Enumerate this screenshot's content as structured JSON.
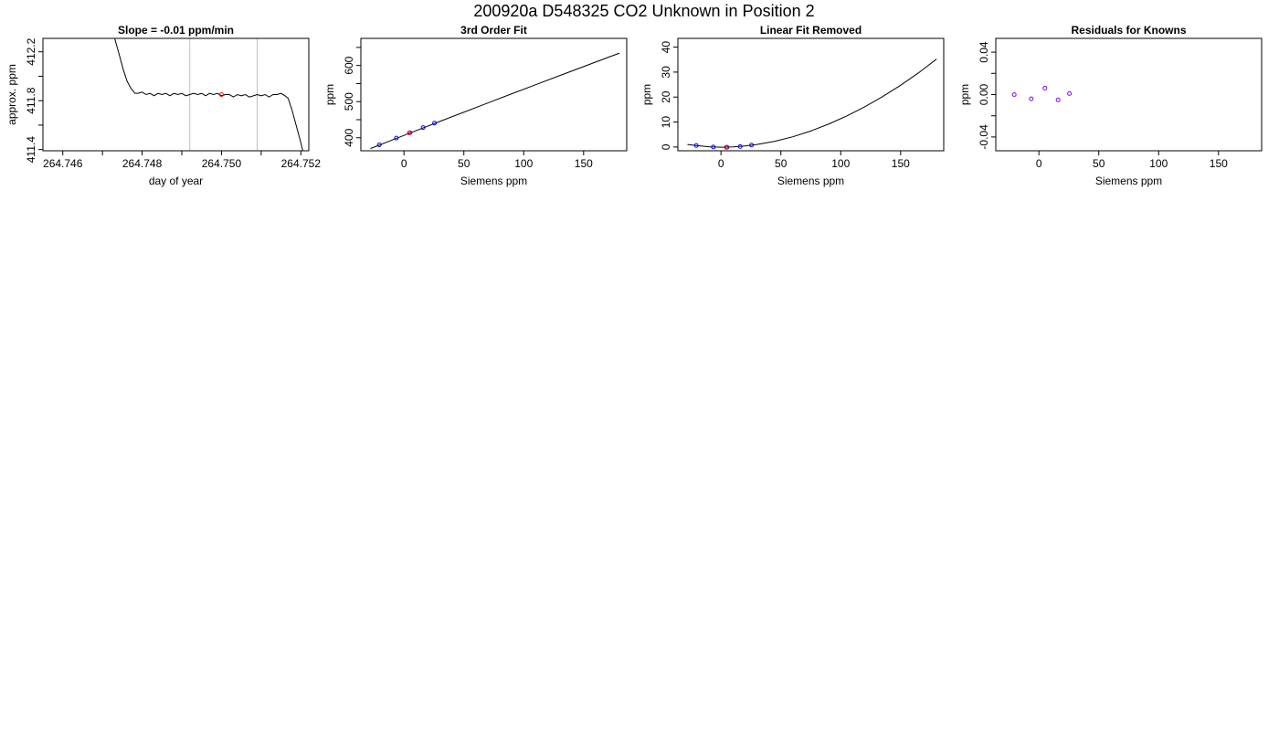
{
  "chart_data": {
    "suptitle": "200920a     D548325   CO2 Unknown in Position  2",
    "panels": [
      {
        "type": "line",
        "title": "Slope =  -0.01  ppm/min",
        "xlabel": "day of year",
        "ylabel": "approx. ppm",
        "xlim": [
          264.7455,
          264.7522
        ],
        "ylim": [
          411.39,
          412.31
        ],
        "xticks": [
          264.746,
          264.748,
          264.75,
          264.752
        ],
        "xtick_labels": [
          "264.746",
          "264.748",
          "264.750",
          "264.752"
        ],
        "xminor_ticks": [
          264.747,
          264.749,
          264.751
        ],
        "yticks": [
          411.4,
          411.8,
          412.2
        ],
        "ytick_labels": [
          "411.4",
          "411.8",
          "412.2"
        ],
        "yminor_ticks": [
          411.6,
          412.0
        ],
        "vlines": [
          264.7492,
          264.7509
        ],
        "series": [
          {
            "x": [
              264.7473,
              264.74742,
              264.74752,
              264.74762,
              264.74772,
              264.74782,
              264.7479,
              264.748,
              264.7481,
              264.7482,
              264.7483,
              264.7484,
              264.7485,
              264.7486,
              264.7487,
              264.7488,
              264.7489,
              264.749,
              264.7491,
              264.7492,
              264.7493,
              264.7494,
              264.7495,
              264.7496,
              264.7497,
              264.7498,
              264.7499,
              264.75,
              264.7501,
              264.7502,
              264.7503,
              264.7504,
              264.7505,
              264.7506,
              264.7507,
              264.7508,
              264.7509,
              264.751,
              264.7511,
              264.7512,
              264.7513,
              264.7514,
              264.7515,
              264.7516,
              264.75168,
              264.75178,
              264.75188,
              264.75198,
              264.75205
            ],
            "y": [
              412.32,
              412.18,
              412.06,
              411.96,
              411.9,
              411.86,
              411.86,
              411.87,
              411.85,
              411.86,
              411.84,
              411.86,
              411.85,
              411.86,
              411.84,
              411.86,
              411.85,
              411.86,
              411.84,
              411.85,
              411.86,
              411.85,
              411.86,
              411.84,
              411.86,
              411.85,
              411.86,
              411.84,
              411.85,
              411.85,
              411.83,
              411.85,
              411.84,
              411.85,
              411.83,
              411.84,
              411.85,
              411.84,
              411.85,
              411.83,
              411.85,
              411.85,
              411.86,
              411.84,
              411.82,
              411.72,
              411.6,
              411.48,
              411.39
            ]
          }
        ],
        "highlight_points": [
          {
            "x": 264.75,
            "y": 411.85,
            "color": "#ff0000"
          }
        ]
      },
      {
        "type": "scatter",
        "title": "3rd Order Fit",
        "xlabel": "Siemens ppm",
        "ylabel": "ppm",
        "xlim": [
          -36,
          186
        ],
        "ylim": [
          364,
          675
        ],
        "xticks": [
          0,
          50,
          100,
          150
        ],
        "xtick_labels": [
          "0",
          "50",
          "100",
          "150"
        ],
        "yticks": [
          400,
          500,
          600
        ],
        "ytick_labels": [
          "400",
          "500",
          "600"
        ],
        "yminor_ticks": [
          450,
          550,
          650
        ],
        "curve": {
          "x": [
            -28,
            -10,
            10,
            30,
            50,
            70,
            90,
            110,
            130,
            150,
            170,
            180
          ],
          "y": [
            370.0,
            393.5,
            419.4,
            445.2,
            470.8,
            496.3,
            521.7,
            546.9,
            572.0,
            597.0,
            621.9,
            634.3
          ]
        },
        "points": {
          "x": [
            -20.6,
            -6.4,
            5.0,
            16.0,
            25.5
          ],
          "y": [
            380.5,
            399.0,
            413.9,
            428.2,
            440.5
          ],
          "color": "#0000ff"
        },
        "highlight_points": [
          {
            "x": 4.5,
            "y": 413.2,
            "color": "#ff0000"
          }
        ]
      },
      {
        "type": "scatter",
        "title": "Linear Fit Removed",
        "xlabel": "Siemens ppm",
        "ylabel": "ppm",
        "xlim": [
          -36,
          186
        ],
        "ylim": [
          -1.5,
          43.5
        ],
        "xticks": [
          0,
          50,
          100,
          150
        ],
        "xtick_labels": [
          "0",
          "50",
          "100",
          "150"
        ],
        "yticks": [
          0,
          10,
          20,
          30,
          40
        ],
        "ytick_labels": [
          "0",
          "10",
          "20",
          "30",
          "40"
        ],
        "curve": {
          "x": [
            -28,
            -20,
            -10,
            0,
            10,
            20,
            30,
            45,
            60,
            75,
            90,
            105,
            120,
            135,
            150,
            165,
            180
          ],
          "y": [
            1.0,
            0.56,
            0.1,
            -0.09,
            0.05,
            0.44,
            1.02,
            2.3,
            4.1,
            6.42,
            9.2,
            12.43,
            16.1,
            20.21,
            24.74,
            29.7,
            35.2
          ]
        },
        "points": {
          "x": [
            -20.6,
            -6.4,
            5.0,
            16.0,
            25.5
          ],
          "y": [
            0.6,
            0.0,
            -0.1,
            0.2,
            0.8
          ],
          "color": "#0000ff"
        },
        "highlight_points": [
          {
            "x": 4.5,
            "y": -0.15,
            "color": "#ff0000"
          }
        ]
      },
      {
        "type": "scatter",
        "title": "Residuals for Knowns",
        "xlabel": "Siemens ppm",
        "ylabel": "ppm",
        "xlim": [
          -36,
          186
        ],
        "ylim": [
          -0.053,
          0.053
        ],
        "xticks": [
          0,
          50,
          100,
          150
        ],
        "xtick_labels": [
          "0",
          "50",
          "100",
          "150"
        ],
        "yticks": [
          -0.04,
          0.0,
          0.04
        ],
        "ytick_labels": [
          "-0.04",
          "0.00",
          "0.04"
        ],
        "yminor_ticks": [
          -0.02,
          0.02
        ],
        "points": {
          "x": [
            -20.6,
            -6.4,
            5.0,
            16.0,
            25.5
          ],
          "y": [
            0.0,
            -0.004,
            0.006,
            -0.005,
            0.001
          ],
          "color": "#8800ff"
        }
      }
    ]
  }
}
